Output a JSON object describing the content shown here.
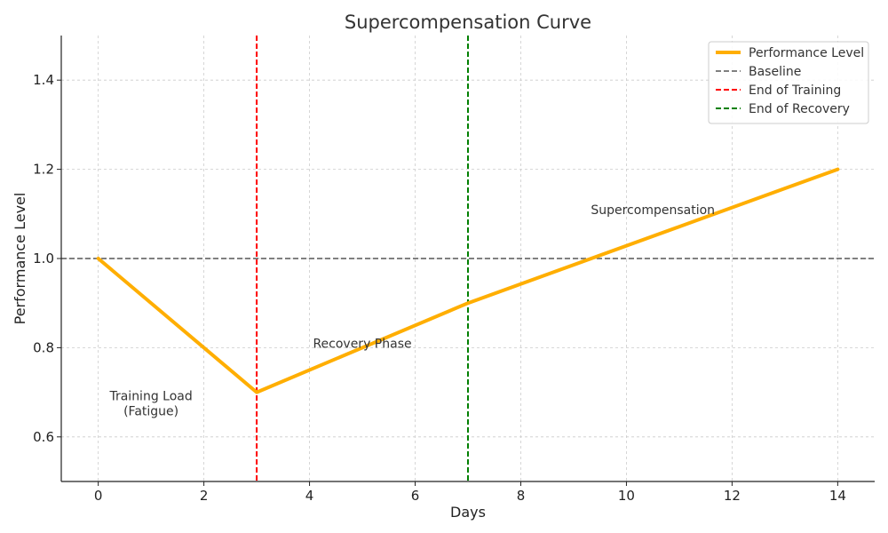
{
  "chart_data": {
    "type": "line",
    "title": "Supercompensation Curve",
    "xlabel": "Days",
    "ylabel": "Performance Level",
    "xlim": [
      -0.7,
      14.7
    ],
    "ylim": [
      0.5,
      1.5
    ],
    "xticks": [
      0,
      2,
      4,
      6,
      8,
      10,
      12,
      14
    ],
    "yticks": [
      0.6,
      0.8,
      1.0,
      1.2,
      1.4
    ],
    "xtick_labels": [
      "0",
      "2",
      "4",
      "6",
      "8",
      "10",
      "12",
      "14"
    ],
    "ytick_labels": [
      "0.6",
      "0.8",
      "1.0",
      "1.2",
      "1.4"
    ],
    "grid": true,
    "legend_position": "top-right",
    "series": [
      {
        "name": "Performance Level",
        "color": "#FFAE00",
        "style": "solid",
        "x": [
          0,
          3,
          7,
          14
        ],
        "y": [
          1.0,
          0.7,
          0.9,
          1.2
        ]
      }
    ],
    "reference_lines": [
      {
        "name": "Baseline",
        "orientation": "horizontal",
        "value": 1.0,
        "color": "#808080",
        "style": "dashed"
      },
      {
        "name": "End of Training",
        "orientation": "vertical",
        "value": 3,
        "color": "#FF0000",
        "style": "dashed"
      },
      {
        "name": "End of Recovery",
        "orientation": "vertical",
        "value": 7,
        "color": "#008000",
        "style": "dashed"
      }
    ],
    "annotations": [
      {
        "lines": [
          "Training Load",
          "(Fatigue)"
        ],
        "x": 1,
        "y": 0.675
      },
      {
        "lines": [
          "Recovery Phase"
        ],
        "x": 5,
        "y": 0.81
      },
      {
        "lines": [
          "Supercompensation"
        ],
        "x": 10.5,
        "y": 1.11
      }
    ]
  }
}
